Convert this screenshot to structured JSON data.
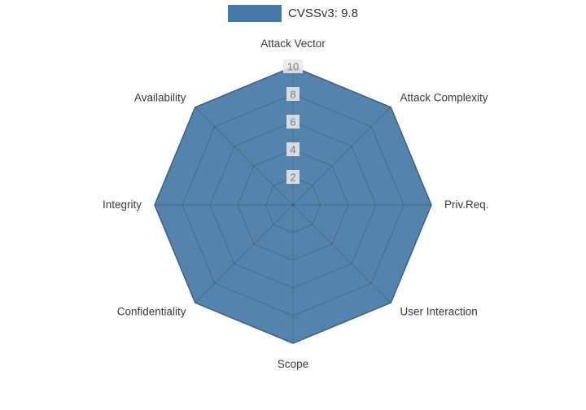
{
  "page": {
    "background": "#ffffff"
  },
  "legend": {
    "items": [
      {
        "label": "CVSSv3: 9.8",
        "color": "#4579a7"
      }
    ]
  },
  "chart_data": {
    "type": "radar",
    "title": "",
    "categories": [
      "Attack Vector",
      "Attack Complexity",
      "Priv.Req.",
      "User Interaction",
      "Scope",
      "Confidentiality",
      "Integrity",
      "Availability"
    ],
    "series": [
      {
        "name": "CVSSv3: 9.8",
        "values": [
          10,
          10,
          10,
          10,
          10,
          10,
          10,
          10
        ],
        "fill_color": "#4579a7",
        "line_color": "#3d6c99"
      }
    ],
    "radial_ticks": [
      2,
      4,
      6,
      8,
      10
    ],
    "range": [
      0,
      10
    ],
    "grid": true,
    "legend_position": "top-center",
    "colors": {
      "grid_line": "rgba(60,60,60,0.35)",
      "tick_text": "#7f7f7f",
      "tick_bg": "#e8e8e8",
      "axis_label": "#3a3a3a"
    }
  }
}
